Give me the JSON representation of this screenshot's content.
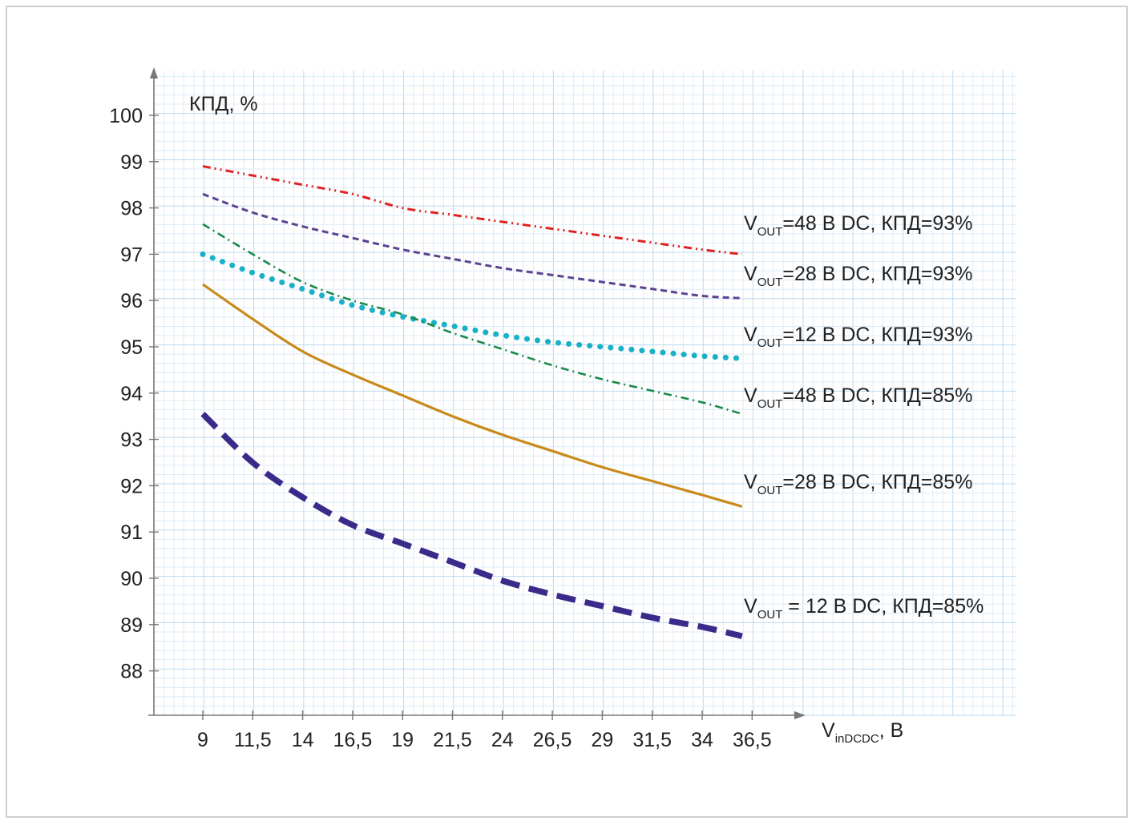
{
  "chart_data": {
    "type": "line",
    "ylabel": "КПД, %",
    "xlabel": {
      "main": "V",
      "sub": "inDCDC",
      "unit": ", В"
    },
    "x": [
      9,
      11.5,
      14,
      16.5,
      19,
      21.5,
      24,
      26.5,
      29,
      31.5,
      34,
      36.5
    ],
    "x_tick_labels": [
      "9",
      "11,5",
      "14",
      "16,5",
      "19",
      "21,5",
      "24",
      "26,5",
      "29",
      "31,5",
      "34",
      "36,5"
    ],
    "y_ticks": [
      88,
      89,
      90,
      91,
      92,
      93,
      94,
      95,
      96,
      97,
      98,
      99,
      100
    ],
    "ylim": [
      87,
      101
    ],
    "grid": true,
    "series": [
      {
        "label_main": "V",
        "label_sub": "OUT",
        "label_rest": "=48 В DC, КПД=93%",
        "color": "#e02020",
        "style": "dash-dot-dot",
        "x": [
          9,
          11.5,
          14,
          16.5,
          19,
          21.5,
          24,
          26.5,
          29,
          31.5,
          34,
          36
        ],
        "values": [
          98.9,
          98.7,
          98.5,
          98.3,
          98.0,
          97.85,
          97.7,
          97.55,
          97.4,
          97.25,
          97.1,
          97.0
        ]
      },
      {
        "label_main": "V",
        "label_sub": "OUT",
        "label_rest": "=28 В DC, КПД=93%",
        "color": "#5b4391",
        "style": "dashed",
        "x": [
          9,
          11.5,
          14,
          16.5,
          19,
          21.5,
          24,
          26.5,
          29,
          31.5,
          34,
          36
        ],
        "values": [
          98.3,
          97.9,
          97.6,
          97.35,
          97.1,
          96.9,
          96.7,
          96.55,
          96.4,
          96.25,
          96.1,
          96.05
        ]
      },
      {
        "label_main": "V",
        "label_sub": "OUT",
        "label_rest": "=12 В DC, КПД=93%",
        "color": "#1ab0c8",
        "style": "dotted",
        "x": [
          9,
          11.5,
          14,
          16.5,
          19,
          21.5,
          24,
          26.5,
          29,
          31.5,
          34,
          36
        ],
        "values": [
          97.0,
          96.6,
          96.25,
          95.9,
          95.65,
          95.45,
          95.25,
          95.1,
          95.0,
          94.9,
          94.8,
          94.75
        ]
      },
      {
        "label_main": "V",
        "label_sub": "OUT",
        "label_rest": "=48 В DC, КПД=85%",
        "color": "#1a8a4a",
        "style": "dash-dot",
        "x": [
          9,
          11.5,
          14,
          16.5,
          19,
          21.5,
          24,
          26.5,
          29,
          31.5,
          34,
          36
        ],
        "values": [
          97.65,
          97.0,
          96.4,
          96.0,
          95.7,
          95.3,
          94.95,
          94.6,
          94.3,
          94.05,
          93.8,
          93.55
        ]
      },
      {
        "label_main": "V",
        "label_sub": "OUT",
        "label_rest": "=28 В DC, КПД=85%",
        "color": "#c88a1a",
        "style": "solid",
        "x": [
          9,
          11.5,
          14,
          16.5,
          19,
          21.5,
          24,
          26.5,
          29,
          31.5,
          34,
          36
        ],
        "values": [
          96.35,
          95.6,
          94.9,
          94.4,
          93.95,
          93.5,
          93.1,
          92.75,
          92.4,
          92.1,
          91.8,
          91.55
        ]
      },
      {
        "label_main": "V",
        "label_sub": "OUT",
        "label_rest": " = 12 В DC, КПД=85%",
        "color": "#3a2a8a",
        "style": "bold-dashed",
        "x": [
          9,
          11.5,
          14,
          16.5,
          19,
          21.5,
          24,
          26.5,
          29,
          31.5,
          34,
          36
        ],
        "values": [
          93.55,
          92.5,
          91.75,
          91.15,
          90.75,
          90.35,
          89.95,
          89.65,
          89.4,
          89.15,
          88.95,
          88.75
        ]
      }
    ]
  }
}
